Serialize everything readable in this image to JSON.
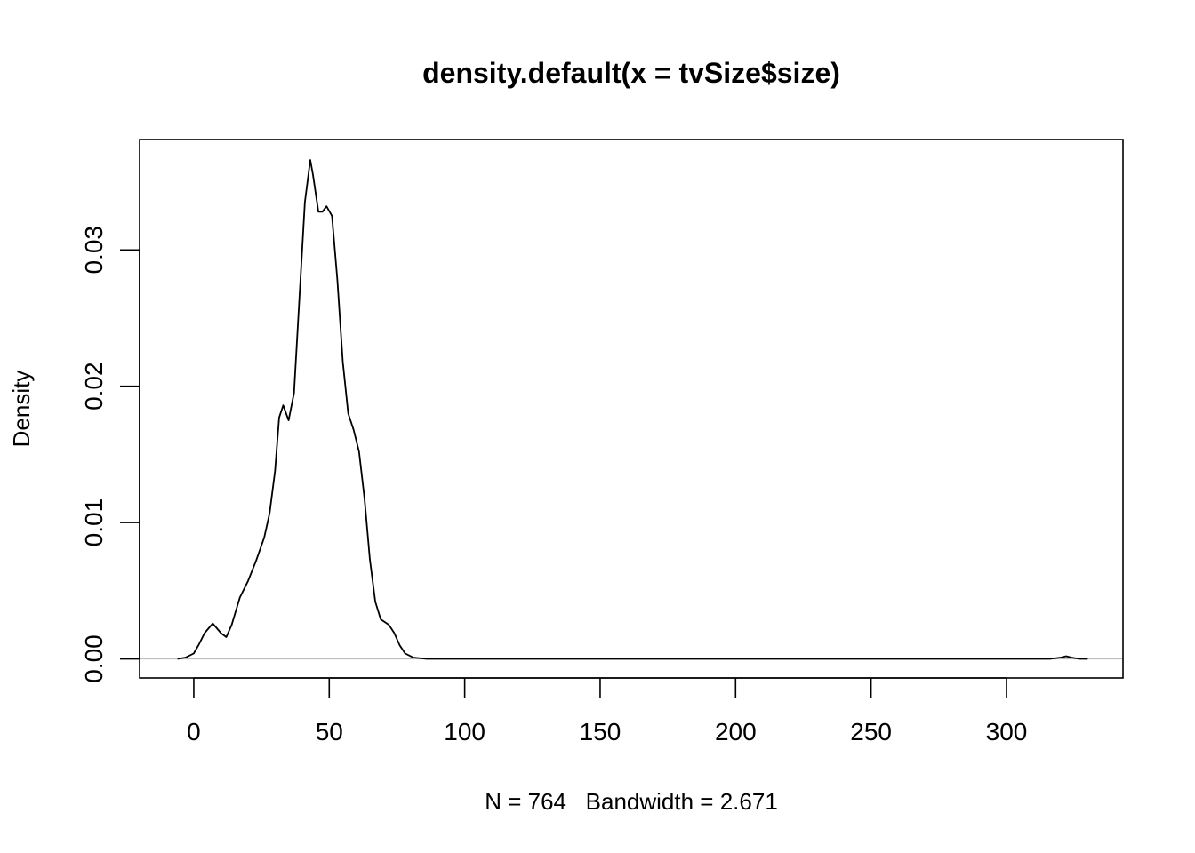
{
  "chart_data": {
    "type": "line",
    "title": "density.default(x = tvSize$size)",
    "xlabel": "N = 764   Bandwidth = 2.671",
    "ylabel": "Density",
    "xlim": [
      -20,
      343
    ],
    "ylim": [
      -0.0014,
      0.0381
    ],
    "x_ticks": [
      0,
      50,
      100,
      150,
      200,
      250,
      300
    ],
    "x_tick_labels": [
      "0",
      "50",
      "100",
      "150",
      "200",
      "250",
      "300"
    ],
    "y_ticks": [
      0,
      0.01,
      0.02,
      0.03
    ],
    "y_tick_labels": [
      "0.00",
      "0.01",
      "0.02",
      "0.03"
    ],
    "baseline": 0,
    "grid": false,
    "series": [
      {
        "x": [
          -6,
          -3,
          0,
          2,
          4,
          7,
          10,
          12,
          14,
          17,
          20,
          23,
          26,
          28,
          30,
          31.5,
          33,
          35,
          37,
          39,
          41,
          43,
          44,
          46,
          47.5,
          49,
          51,
          53,
          55,
          57,
          59,
          61,
          63,
          65,
          67,
          69,
          72,
          74,
          76,
          78,
          81,
          86,
          90,
          100,
          150,
          200,
          250,
          300,
          316,
          320,
          322,
          324,
          327,
          330
        ],
        "y": [
          0.0,
          0.0001,
          0.0004,
          0.0011,
          0.0019,
          0.0026,
          0.0019,
          0.0016,
          0.0025,
          0.0045,
          0.0057,
          0.0072,
          0.0089,
          0.0107,
          0.0138,
          0.0177,
          0.0186,
          0.0175,
          0.0195,
          0.0265,
          0.0335,
          0.0366,
          0.0355,
          0.0328,
          0.0328,
          0.0332,
          0.0325,
          0.0278,
          0.0218,
          0.018,
          0.0168,
          0.0152,
          0.0118,
          0.0073,
          0.0042,
          0.0029,
          0.0025,
          0.0019,
          0.001,
          0.0004,
          0.0001,
          0.0,
          0.0,
          0.0,
          0.0,
          0.0,
          0.0,
          0.0,
          0.0,
          0.0001,
          0.0002,
          0.0001,
          0.0,
          0.0
        ]
      }
    ]
  }
}
